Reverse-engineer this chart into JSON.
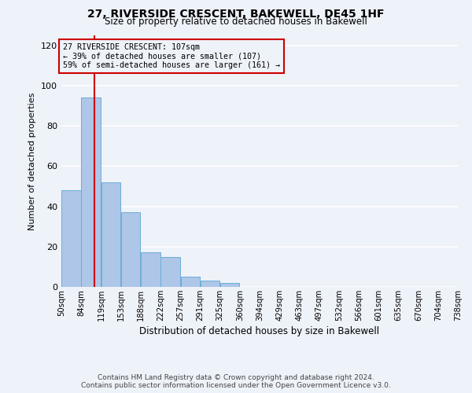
{
  "title": "27, RIVERSIDE CRESCENT, BAKEWELL, DE45 1HF",
  "subtitle": "Size of property relative to detached houses in Bakewell",
  "xlabel": "Distribution of detached houses by size in Bakewell",
  "ylabel": "Number of detached properties",
  "bin_edges": [
    50,
    84,
    119,
    153,
    188,
    222,
    257,
    291,
    325,
    360,
    394,
    429,
    463,
    497,
    532,
    566,
    601,
    635,
    670,
    704,
    738
  ],
  "bin_labels": [
    "50sqm",
    "84sqm",
    "119sqm",
    "153sqm",
    "188sqm",
    "222sqm",
    "257sqm",
    "291sqm",
    "325sqm",
    "360sqm",
    "394sqm",
    "429sqm",
    "463sqm",
    "497sqm",
    "532sqm",
    "566sqm",
    "601sqm",
    "635sqm",
    "670sqm",
    "704sqm",
    "738sqm"
  ],
  "counts": [
    48,
    94,
    52,
    37,
    17,
    15,
    5,
    3,
    2,
    0,
    0,
    0,
    0,
    0,
    0,
    0,
    0,
    0,
    0,
    0
  ],
  "bar_color": "#aec6e8",
  "bar_edgecolor": "#6aaed6",
  "ylim": [
    0,
    125
  ],
  "yticks": [
    0,
    20,
    40,
    60,
    80,
    100,
    120
  ],
  "property_value": 107,
  "red_line_color": "#cc0000",
  "annotation_text_line1": "27 RIVERSIDE CRESCENT: 107sqm",
  "annotation_text_line2": "← 39% of detached houses are smaller (107)",
  "annotation_text_line3": "59% of semi-detached houses are larger (161) →",
  "footer_line1": "Contains HM Land Registry data © Crown copyright and database right 2024.",
  "footer_line2": "Contains public sector information licensed under the Open Government Licence v3.0.",
  "background_color": "#eef2f9",
  "grid_color": "#ffffff"
}
